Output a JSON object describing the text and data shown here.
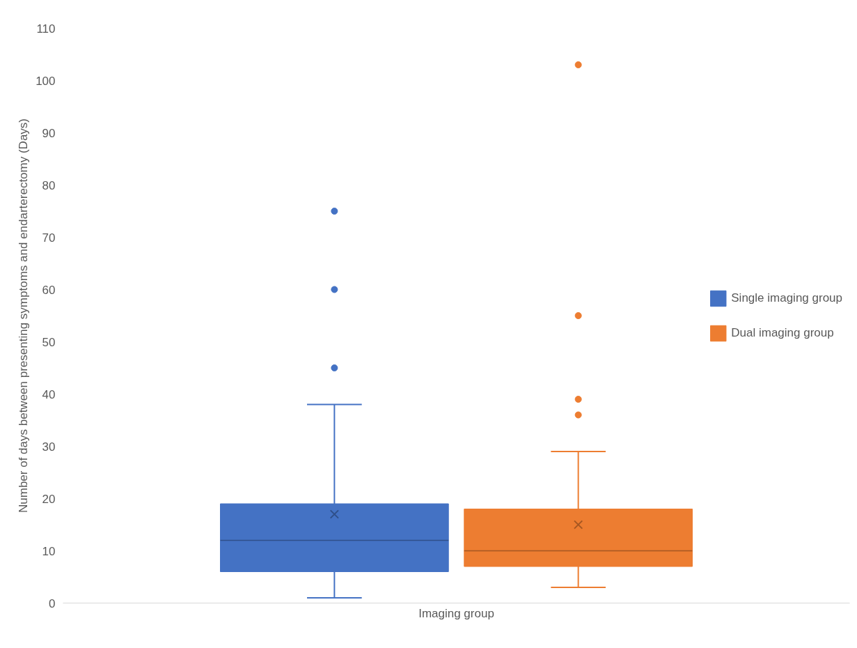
{
  "chart_data": {
    "type": "box",
    "xlabel": "Imaging group",
    "ylabel": "Number of days between presenting symptoms and endarterectomy (Days)",
    "categories": [
      null
    ],
    "ylim": [
      0,
      110
    ],
    "yticks": [
      0,
      10,
      20,
      30,
      40,
      50,
      60,
      70,
      80,
      90,
      100,
      110
    ],
    "grid": false,
    "legend": "right",
    "series": [
      {
        "name": "Single imaging group",
        "color": "#4472c4",
        "boxes": [
          {
            "low": 1,
            "q1": 6,
            "median": 12,
            "q3": 19,
            "high": 38,
            "mean": 17,
            "outliers": [
              45,
              60,
              75
            ]
          }
        ]
      },
      {
        "name": "Dual imaging group",
        "color": "#ed7d31",
        "boxes": [
          {
            "low": 3,
            "q1": 7,
            "median": 10,
            "q3": 18,
            "high": 29,
            "mean": 15,
            "outliers": [
              36,
              39,
              55,
              103
            ]
          }
        ]
      }
    ]
  }
}
